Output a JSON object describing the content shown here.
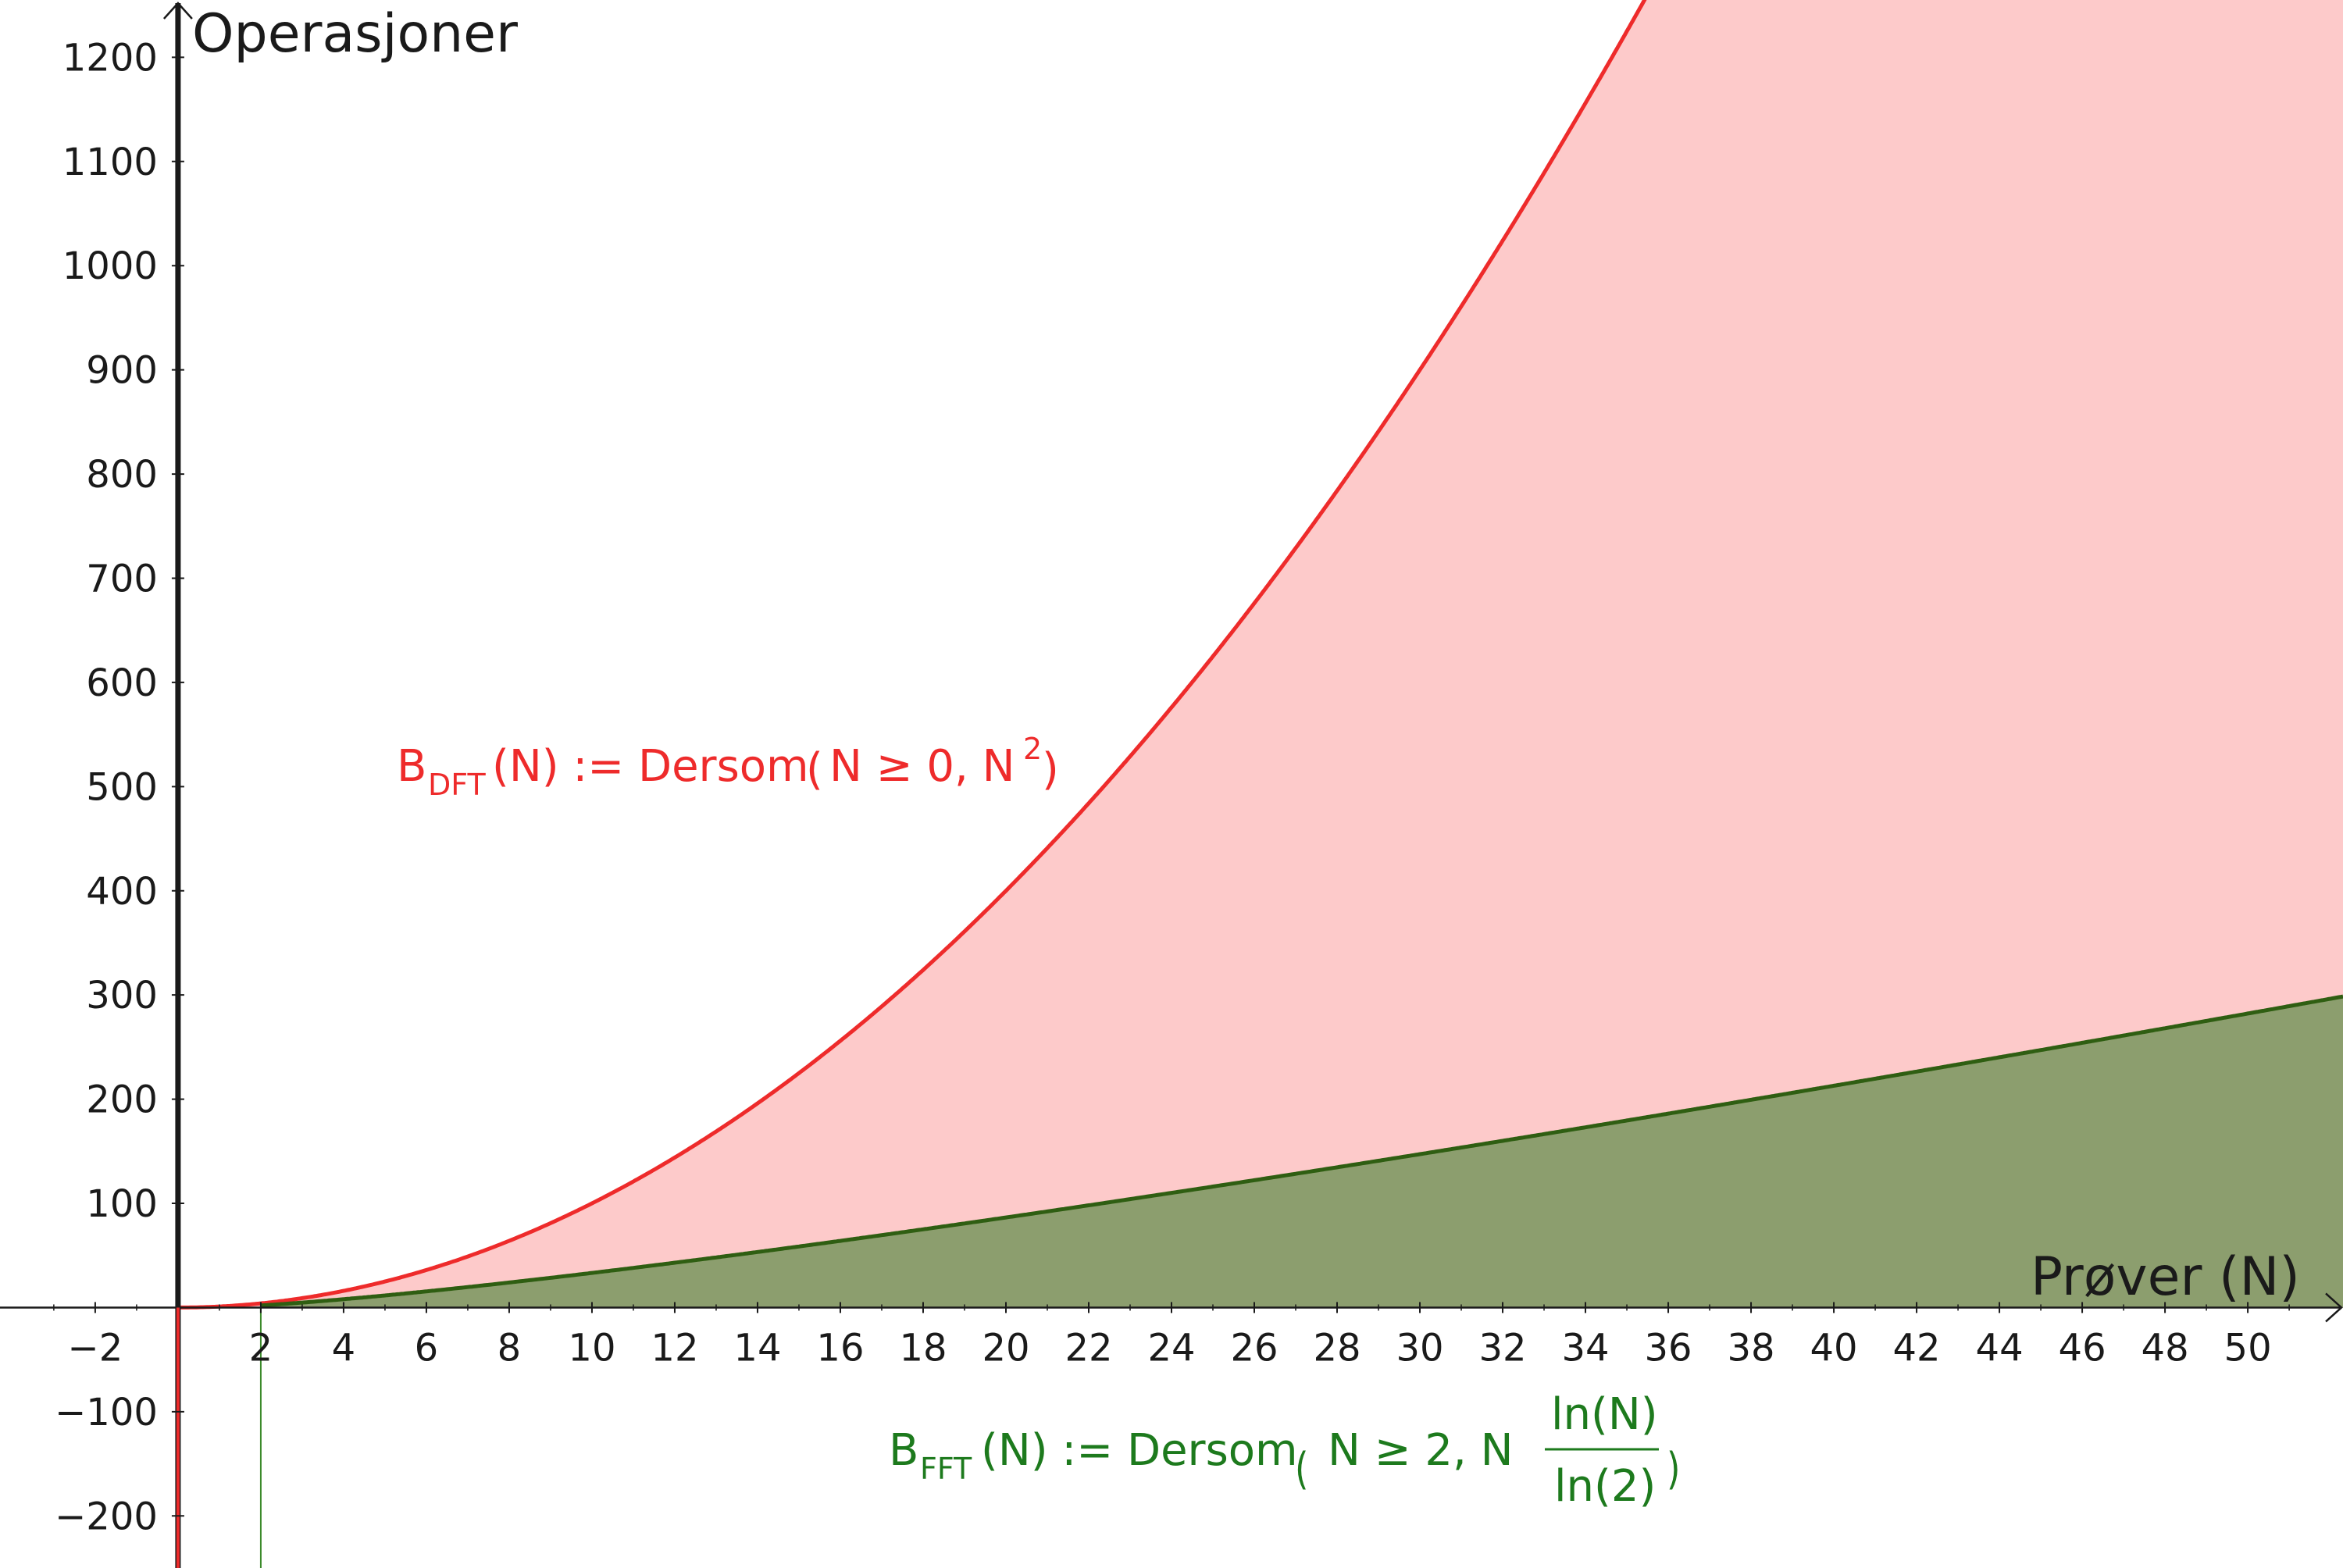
{
  "chart_data": {
    "type": "area",
    "xlabel": "Prøver (N)",
    "ylabel": "Operasjoner",
    "xlim": [
      -4.3,
      52.3
    ],
    "ylim": [
      -250,
      1255
    ],
    "x_ticks": [
      -2,
      2,
      4,
      6,
      8,
      10,
      12,
      14,
      16,
      18,
      20,
      22,
      24,
      26,
      28,
      30,
      32,
      34,
      36,
      38,
      40,
      42,
      44,
      46,
      48,
      50
    ],
    "x_tick_labels": [
      "−2",
      "2",
      "4",
      "6",
      "8",
      "10",
      "12",
      "14",
      "16",
      "18",
      "20",
      "22",
      "24",
      "26",
      "28",
      "30",
      "32",
      "34",
      "36",
      "38",
      "40",
      "42",
      "44",
      "46",
      "48",
      "50"
    ],
    "y_ticks": [
      -200,
      -100,
      100,
      200,
      300,
      400,
      500,
      600,
      700,
      800,
      900,
      1000,
      1100,
      1200
    ],
    "y_tick_labels": [
      "−200",
      "−100",
      "100",
      "200",
      "300",
      "400",
      "500",
      "600",
      "700",
      "800",
      "900",
      "1000",
      "1100",
      "1200"
    ],
    "grid": false,
    "series": [
      {
        "id": "dft",
        "function": "N^2",
        "domain_min": 0,
        "color": "#ee2b2b",
        "fill": "#fdcaca",
        "label": {
          "base": "B",
          "sub": "DFT",
          "text1": "(N) := Dersom",
          "text2": "N ≥ 0,  N",
          "sup": "2"
        }
      },
      {
        "id": "fft",
        "function": "N*log2(N)",
        "domain_min": 2,
        "color": "#2f5e12",
        "fill": "#8c9e6e",
        "label_color": "#1d7a1d",
        "label": {
          "base": "B",
          "sub": "FFT",
          "text1": "(N) := Dersom",
          "text2": "N ≥ 2,  N",
          "num": "ln(N)",
          "den": "ln(2)"
        }
      }
    ],
    "marker_line_x": 2
  }
}
